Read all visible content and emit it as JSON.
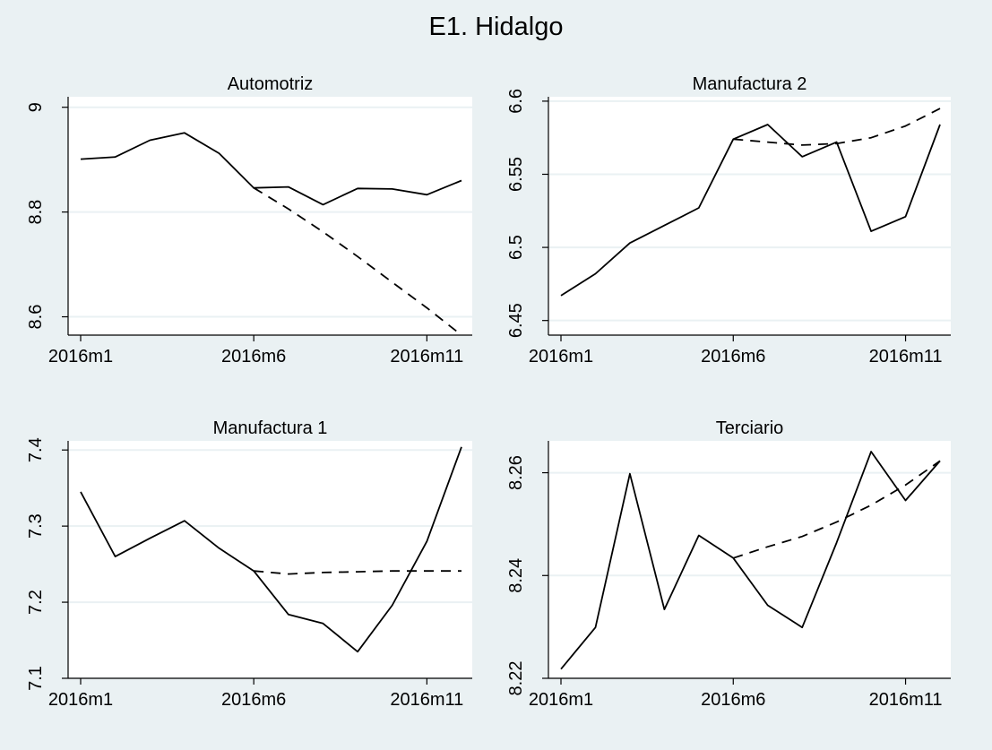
{
  "figure": {
    "title": "E1. Hidalgo"
  },
  "colors": {
    "background": "#eaf1f3",
    "plot_area": "#ffffff",
    "grid": "#eaf1f3",
    "line": "#000000"
  },
  "chart_data": [
    {
      "type": "line",
      "title": "Automotriz",
      "xlabel": "",
      "ylabel": "",
      "x": [
        "2016m1",
        "2016m2",
        "2016m3",
        "2016m4",
        "2016m5",
        "2016m6",
        "2016m7",
        "2016m8",
        "2016m9",
        "2016m10",
        "2016m11",
        "2016m12"
      ],
      "xticks": [
        "2016m1",
        "2016m6",
        "2016m11"
      ],
      "yticks": [
        "8.6",
        "8.8",
        "9"
      ],
      "ylim": [
        8.565,
        9.02
      ],
      "grid": true,
      "series": [
        {
          "style": "solid",
          "values": [
            8.901,
            8.905,
            8.937,
            8.951,
            8.912,
            8.846,
            8.848,
            8.814,
            8.845,
            8.844,
            8.833,
            8.86
          ]
        },
        {
          "style": "dashed",
          "values": [
            null,
            null,
            null,
            null,
            null,
            8.846,
            8.806,
            8.762,
            8.715,
            8.666,
            8.617,
            8.565
          ]
        }
      ]
    },
    {
      "type": "line",
      "title": "Manufactura 2",
      "xlabel": "",
      "ylabel": "",
      "x": [
        "2016m1",
        "2016m2",
        "2016m3",
        "2016m4",
        "2016m5",
        "2016m6",
        "2016m7",
        "2016m8",
        "2016m9",
        "2016m10",
        "2016m11",
        "2016m12"
      ],
      "xticks": [
        "2016m1",
        "2016m6",
        "2016m11"
      ],
      "yticks": [
        "6.45",
        "6.5",
        "6.55",
        "6.6"
      ],
      "ylim": [
        6.44,
        6.603
      ],
      "grid": true,
      "series": [
        {
          "style": "solid",
          "values": [
            6.467,
            6.482,
            6.503,
            6.515,
            6.527,
            6.574,
            6.584,
            6.562,
            6.572,
            6.511,
            6.521,
            6.584
          ]
        },
        {
          "style": "dashed",
          "values": [
            null,
            null,
            null,
            null,
            null,
            6.574,
            6.572,
            6.57,
            6.571,
            6.575,
            6.583,
            6.595
          ]
        }
      ]
    },
    {
      "type": "line",
      "title": "Manufactura 1",
      "xlabel": "",
      "ylabel": "",
      "x": [
        "2016m1",
        "2016m2",
        "2016m3",
        "2016m4",
        "2016m5",
        "2016m6",
        "2016m7",
        "2016m8",
        "2016m9",
        "2016m10",
        "2016m11",
        "2016m12"
      ],
      "xticks": [
        "2016m1",
        "2016m6",
        "2016m11"
      ],
      "yticks": [
        "7.1",
        "7.2",
        "7.3",
        "7.4"
      ],
      "ylim": [
        7.1,
        7.412
      ],
      "grid": true,
      "series": [
        {
          "style": "solid",
          "values": [
            7.345,
            7.26,
            7.284,
            7.307,
            7.271,
            7.241,
            7.184,
            7.172,
            7.135,
            7.196,
            7.28,
            7.404
          ]
        },
        {
          "style": "dashed",
          "values": [
            null,
            null,
            null,
            null,
            null,
            7.241,
            7.237,
            7.239,
            7.24,
            7.241,
            7.241,
            7.241
          ]
        }
      ]
    },
    {
      "type": "line",
      "title": "Terciario",
      "xlabel": "",
      "ylabel": "",
      "x": [
        "2016m1",
        "2016m2",
        "2016m3",
        "2016m4",
        "2016m5",
        "2016m6",
        "2016m7",
        "2016m8",
        "2016m9",
        "2016m10",
        "2016m11",
        "2016m12"
      ],
      "xticks": [
        "2016m1",
        "2016m6",
        "2016m11"
      ],
      "yticks": [
        "8.22",
        "8.24",
        "8.26"
      ],
      "ylim": [
        8.22,
        8.2662
      ],
      "grid": true,
      "series": [
        {
          "style": "solid",
          "values": [
            8.2218,
            8.2299,
            8.2598,
            8.2334,
            8.2478,
            8.2434,
            8.2342,
            8.2299,
            8.2464,
            8.2641,
            8.2546,
            8.2623
          ]
        },
        {
          "style": "dashed",
          "values": [
            null,
            null,
            null,
            null,
            null,
            8.2434,
            8.2456,
            8.2476,
            8.2504,
            8.2537,
            8.2576,
            8.2623
          ]
        }
      ]
    }
  ]
}
